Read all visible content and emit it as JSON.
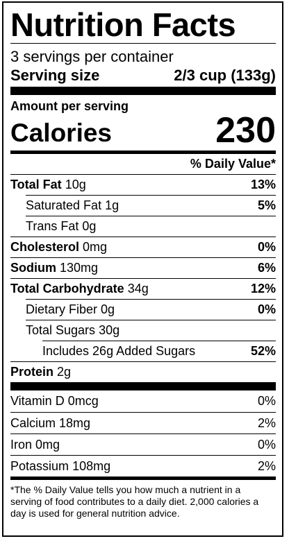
{
  "title": "Nutrition Facts",
  "servings": "3 servings per container",
  "serving_size": {
    "label": "Serving size",
    "value": "2/3 cup (133g)"
  },
  "amount_per_serving": "Amount per serving",
  "calories": {
    "label": "Calories",
    "value": "230"
  },
  "daily_value_header": "% Daily Value*",
  "nutrients": [
    {
      "name": "Total Fat",
      "amount": "10g",
      "dv": "13%"
    },
    {
      "name": "Saturated Fat",
      "amount": "1g",
      "dv": "5%"
    },
    {
      "name": "Trans Fat",
      "amount": "0g",
      "dv": ""
    },
    {
      "name": "Cholesterol",
      "amount": "0mg",
      "dv": "0%"
    },
    {
      "name": "Sodium",
      "amount": "130mg",
      "dv": "6%"
    },
    {
      "name": "Total Carbohydrate",
      "amount": "34g",
      "dv": "12%"
    },
    {
      "name": "Dietary Fiber",
      "amount": "0g",
      "dv": "0%"
    },
    {
      "name": "Total Sugars",
      "amount": "30g",
      "dv": ""
    },
    {
      "name": "Includes 26g Added Sugars",
      "amount": "",
      "dv": "52%"
    },
    {
      "name": "Protein",
      "amount": "2g",
      "dv": ""
    }
  ],
  "vitamins": [
    {
      "name": "Vitamin D",
      "amount": "0mcg",
      "dv": "0%"
    },
    {
      "name": "Calcium",
      "amount": "18mg",
      "dv": "2%"
    },
    {
      "name": "Iron",
      "amount": "0mg",
      "dv": "0%"
    },
    {
      "name": "Potassium",
      "amount": "108mg",
      "dv": "2%"
    }
  ],
  "footnote": "*The % Daily Value tells you how much a nutrient in a serving of food contributes to a daily diet. 2,000 calories a day is used for general nutrition advice."
}
